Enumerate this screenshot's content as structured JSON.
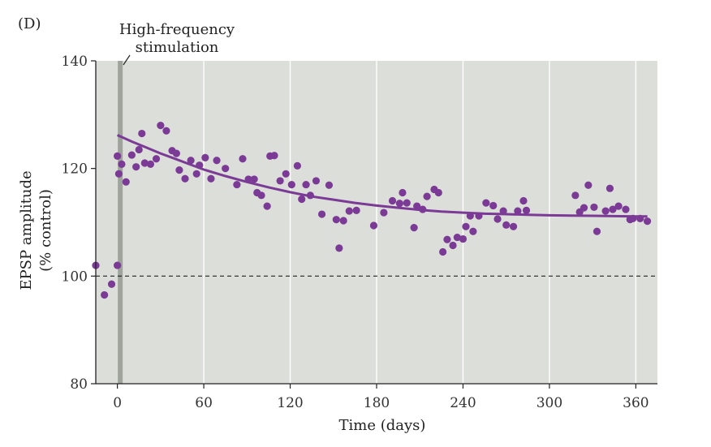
{
  "panel_label": "(D)",
  "chart_data": {
    "type": "scatter",
    "xlabel": "Time (days)",
    "ylabel": "EPSP amplitude",
    "ylabel_sub": "(% control)",
    "xlim": [
      -15,
      375
    ],
    "ylim": [
      80,
      140
    ],
    "x_ticks": [
      0,
      60,
      120,
      180,
      240,
      300,
      360
    ],
    "y_ticks": [
      80,
      100,
      120,
      140
    ],
    "grid": "vertical",
    "annotation": {
      "line1": "High-frequency",
      "line2": "stimulation",
      "x": 2
    },
    "reference_line": {
      "y": 100,
      "style": "dashed"
    },
    "colors": {
      "points": "#7b3a96",
      "fit": "#7b3a96",
      "plot_bg": "#dcdfd9",
      "stim_bar": "#9ea39c"
    },
    "series": [
      {
        "x": [
          -15,
          -9,
          -4,
          0,
          0,
          1,
          3,
          6,
          10,
          13,
          15,
          17,
          19,
          23,
          27,
          30,
          34,
          38,
          41,
          43,
          47,
          51,
          55,
          57,
          61,
          65,
          69,
          75,
          83,
          87,
          91,
          95,
          97,
          100,
          104,
          106,
          109,
          113,
          117,
          121,
          125,
          128,
          131,
          134,
          138,
          142,
          147,
          152,
          154,
          157,
          161,
          166,
          178,
          185,
          191,
          196,
          198,
          201,
          206,
          208,
          212,
          215,
          220,
          223,
          226,
          229,
          233,
          236,
          240,
          242,
          245,
          247,
          251,
          256,
          261,
          264,
          268,
          270,
          275,
          278,
          282,
          284,
          318,
          321,
          324,
          327,
          331,
          333,
          339,
          342,
          344,
          348,
          353,
          356,
          358,
          363,
          368
        ],
        "y": [
          102,
          96.5,
          98.5,
          102,
          122.3,
          119,
          120.8,
          117.5,
          122.5,
          120.3,
          123.5,
          126.5,
          121,
          120.8,
          121.8,
          128,
          127,
          123.3,
          122.8,
          119.7,
          118.1,
          121.5,
          119,
          120.6,
          122,
          118.1,
          121.5,
          120,
          117,
          121.8,
          118,
          118,
          115.5,
          115,
          113,
          122.3,
          122.4,
          117.7,
          119,
          117,
          120.5,
          114.3,
          117,
          115,
          117.7,
          111.5,
          116.9,
          110.5,
          105.2,
          110.3,
          112.1,
          112.2,
          109.4,
          111.8,
          114,
          113.5,
          115.5,
          113.6,
          109,
          113,
          112.4,
          114.8,
          116.1,
          115.5,
          104.5,
          106.8,
          105.7,
          107.2,
          106.9,
          109.2,
          111.2,
          108.3,
          111.2,
          113.6,
          113.1,
          110.6,
          112.1,
          109.5,
          109.2,
          112.1,
          114,
          112.2,
          115,
          111.9,
          112.7,
          116.9,
          112.8,
          108.3,
          112.1,
          116.3,
          112.4,
          113,
          112.4,
          110.5,
          110.7,
          110.7,
          110.2
        ]
      }
    ],
    "fit_curve": {
      "x": [
        0,
        10,
        20,
        30,
        40,
        50,
        60,
        75,
        90,
        105,
        120,
        135,
        150,
        165,
        180,
        195,
        210,
        225,
        240,
        255,
        270,
        285,
        300,
        315,
        330,
        345,
        360,
        368
      ],
      "y": [
        126.2,
        125,
        123.9,
        122.8,
        121.8,
        120.8,
        119.8,
        118.6,
        117.5,
        116.5,
        115.6,
        114.8,
        114.2,
        113.6,
        113.1,
        112.7,
        112.3,
        112.0,
        111.8,
        111.6,
        111.5,
        111.4,
        111.3,
        111.25,
        111.2,
        111.15,
        111.1,
        111.1
      ]
    }
  }
}
